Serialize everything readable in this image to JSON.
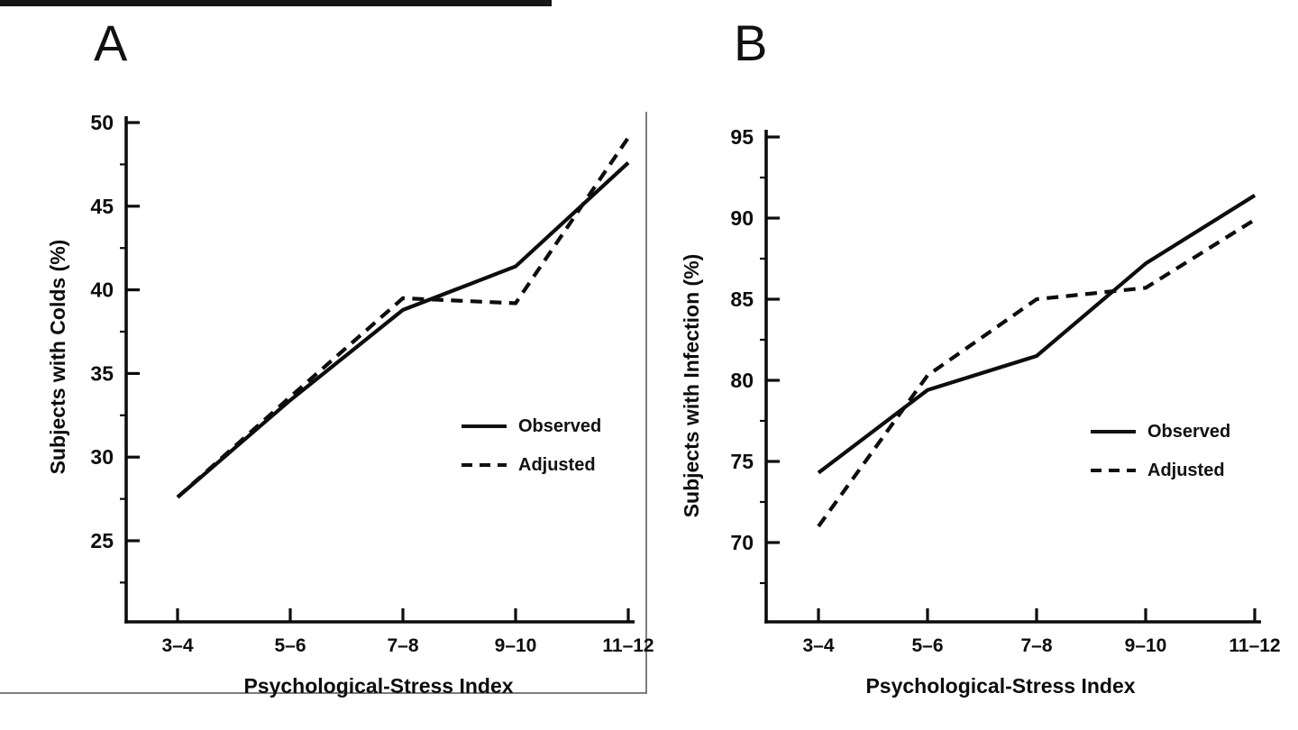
{
  "figure": {
    "background": "#ffffff"
  },
  "colors": {
    "ink": "#0d0d0d",
    "scan_border": "#7d7d7d",
    "scan_bar": "#161616"
  },
  "chart_data": [
    {
      "panel_label": "A",
      "type": "line",
      "xlabel": "Psychological-Stress Index",
      "ylabel": "Subjects with Colds (%)",
      "categories": [
        "3–4",
        "5–6",
        "7–8",
        "9–10",
        "11–12"
      ],
      "yticks": [
        50,
        45,
        40,
        35,
        30,
        25
      ],
      "ylim": [
        20,
        50
      ],
      "grid": false,
      "legend": {
        "position": "center-right",
        "items": [
          "Observed",
          "Adjusted"
        ]
      },
      "series": [
        {
          "name": "Observed",
          "line_style": "solid",
          "values": [
            27.6,
            33.4,
            38.8,
            41.4,
            47.6
          ]
        },
        {
          "name": "Adjusted",
          "line_style": "dashed",
          "values": [
            27.6,
            33.6,
            39.5,
            39.2,
            49.1
          ]
        }
      ]
    },
    {
      "panel_label": "B",
      "type": "line",
      "xlabel": "Psychological-Stress Index",
      "ylabel": "Subjects with Infection (%)",
      "categories": [
        "3–4",
        "5–6",
        "7–8",
        "9–10",
        "11–12"
      ],
      "yticks": [
        95,
        90,
        85,
        80,
        75,
        70
      ],
      "ylim": [
        65,
        95
      ],
      "grid": false,
      "legend": {
        "position": "center-right",
        "items": [
          "Observed",
          "Adjusted"
        ]
      },
      "series": [
        {
          "name": "Observed",
          "line_style": "solid",
          "values": [
            74.3,
            79.4,
            81.5,
            87.2,
            91.4
          ]
        },
        {
          "name": "Adjusted",
          "line_style": "dashed",
          "values": [
            71.0,
            80.3,
            85.0,
            85.7,
            89.9
          ]
        }
      ]
    }
  ]
}
